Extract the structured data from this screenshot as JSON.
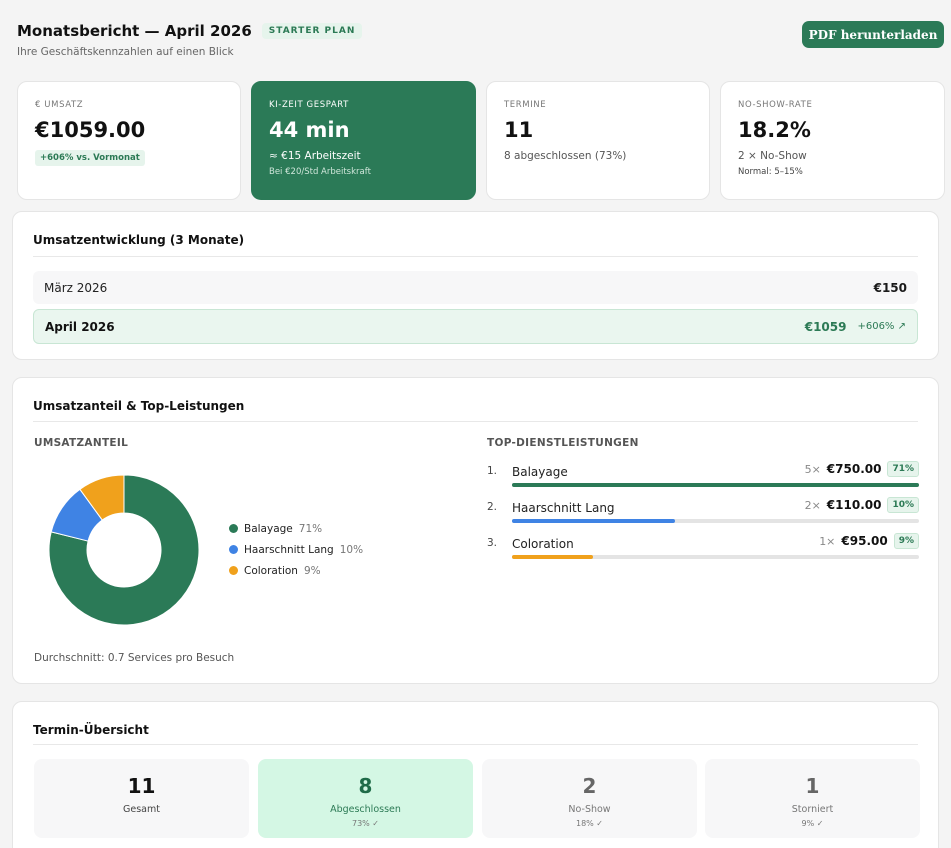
{
  "header": {
    "title": "Monatsbericht — April 2026",
    "plan_badge": "STARTER PLAN",
    "subtitle": "Ihre Geschäftskennzahlen auf einen Blick",
    "pdf_button": "PDF herunterladen"
  },
  "kpis": {
    "umsatz": {
      "label": "€ UMSATZ",
      "value": "€1059.00",
      "badge": "+606% vs. Vormonat"
    },
    "ki_zeit": {
      "label": "KI-ZEIT GESPART",
      "value": "44 min",
      "sub": "≈ €15 Arbeitszeit",
      "small": "Bei €20/Std Arbeitskraft"
    },
    "termine": {
      "label": "TERMINE",
      "value": "11",
      "sub": "8 abgeschlossen (73%)"
    },
    "no_show": {
      "label": "NO-SHOW-RATE",
      "value": "18.2%",
      "sub": "2 × No-Show",
      "small": "Normal: 5–15%"
    }
  },
  "umsatzentwicklung": {
    "title": "Umsatzentwicklung (3 Monate)",
    "months": [
      {
        "name": "März 2026",
        "value": "€150"
      },
      {
        "name": "April 2026",
        "value": "€1059",
        "trend": "+606% ↗"
      }
    ]
  },
  "anteil": {
    "title": "Umsatzanteil & Top-Leistungen",
    "share_label": "UMSATZANTEIL",
    "top_label": "TOP-DIENSTLEISTUNGEN",
    "average": "Durchschnitt: 0.7 Services pro Besuch",
    "colors": {
      "balayage": "#2b7a57",
      "haarschnitt": "#3f83e4",
      "coloration": "#f0a11c"
    },
    "chart_data": {
      "type": "pie",
      "categories": [
        "Balayage",
        "Haarschnitt Lang",
        "Coloration"
      ],
      "values": [
        71,
        10,
        9
      ],
      "labels": [
        "71%",
        "10%",
        "9%"
      ]
    },
    "services": [
      {
        "rank": "1.",
        "name": "Balayage",
        "count": "5×",
        "amount": "€750.00",
        "pct": "71%",
        "share": 1.0,
        "color": "#2b7a57"
      },
      {
        "rank": "2.",
        "name": "Haarschnitt Lang",
        "count": "2×",
        "amount": "€110.00",
        "pct": "10%",
        "share": 0.4,
        "color": "#3f83e4"
      },
      {
        "rank": "3.",
        "name": "Coloration",
        "count": "1×",
        "amount": "€95.00",
        "pct": "9%",
        "share": 0.2,
        "color": "#f0a11c"
      }
    ]
  },
  "termin": {
    "title": "Termin-Übersicht",
    "stats": [
      {
        "value": "11",
        "label": "Gesamt"
      },
      {
        "value": "8",
        "label": "Abgeschlossen",
        "sub": "73% ✓"
      },
      {
        "value": "2",
        "label": "No-Show",
        "sub": "18% ✓"
      },
      {
        "value": "1",
        "label": "Storniert",
        "sub": "9% ✓"
      }
    ]
  }
}
